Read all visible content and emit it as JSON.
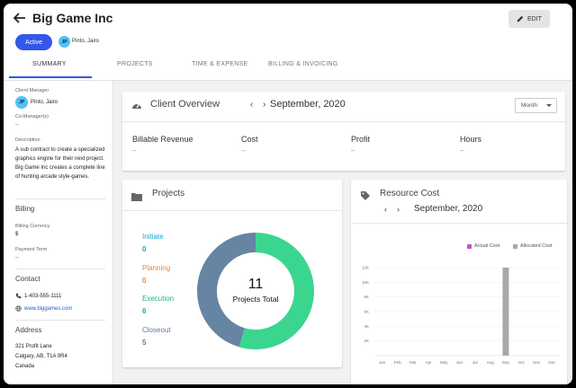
{
  "header": {
    "title": "Big Game Inc",
    "edit_label": "EDIT",
    "status": "Active",
    "owner_initials": "JP",
    "owner_name": "Pinto, Jairo"
  },
  "tabs": [
    "SUMMARY",
    "PROJECTS",
    "TIME & EXPENSE",
    "BILLING & INVOICING"
  ],
  "sidebar": {
    "client_manager_label": "Client Manager",
    "client_manager_initials": "JP",
    "client_manager_name": "Pinto, Jairo",
    "co_managers_label": "Co-Manager(s)",
    "co_managers_value": "--",
    "description_label": "Description",
    "description": "A sub contract to create a specialized graphics engine for their next project. Big Game Inc creates a complete line of hunting arcade style-games.",
    "billing_heading": "Billing",
    "billing_currency_label": "Billing Currency",
    "billing_currency": "$",
    "payment_term_label": "Payment Term",
    "payment_term": "--",
    "contact_heading": "Contact",
    "phone": "1-403-555-1111",
    "website": "www.biggames.com",
    "address_heading": "Address",
    "address_line1": "321 Profit Lane",
    "address_line2": "Calgary, AB, T1A 9R4",
    "address_line3": "Canada"
  },
  "overview": {
    "title": "Client Overview",
    "month": "September, 2020",
    "period_select": "Month",
    "metrics": [
      {
        "label": "Billable Revenue",
        "value": "--"
      },
      {
        "label": "Cost",
        "value": "--"
      },
      {
        "label": "Profit",
        "value": "--"
      },
      {
        "label": "Hours",
        "value": "--"
      }
    ]
  },
  "projects": {
    "title": "Projects",
    "total": "11",
    "total_label": "Projects Total",
    "stages": [
      {
        "label": "Initiate",
        "count": "0",
        "color": "#1aa3c9"
      },
      {
        "label": "Planning",
        "count": "0",
        "color": "#e8873a"
      },
      {
        "label": "Execution",
        "count": "6",
        "color": "#1fb57e"
      },
      {
        "label": "Closeout",
        "count": "5",
        "color": "#5d7e9e"
      }
    ],
    "donut_colors": {
      "execution": "#3ad690",
      "closeout": "#6585a3"
    }
  },
  "resource": {
    "title": "Resource Cost",
    "month": "September, 2020",
    "legend": [
      {
        "label": "Actual Cost",
        "color": "#c955c9"
      },
      {
        "label": "Allocated Cost",
        "color": "#a8a8a8"
      }
    ]
  },
  "chart_data": {
    "type": "bar",
    "categories": [
      "Jan",
      "Feb",
      "Mar",
      "Apr",
      "May",
      "Jun",
      "Jul",
      "Aug",
      "Sep",
      "Oct",
      "Nov",
      "Dec"
    ],
    "yticks": [
      "12K",
      "10K",
      "8K",
      "6K",
      "4K",
      "2K"
    ],
    "ylim": [
      0,
      12000
    ],
    "series": [
      {
        "name": "Actual Cost",
        "values": [
          0,
          0,
          0,
          0,
          0,
          0,
          0,
          0,
          0,
          0,
          0,
          0
        ]
      },
      {
        "name": "Allocated Cost",
        "values": [
          0,
          0,
          0,
          0,
          0,
          0,
          0,
          0,
          12000,
          0,
          0,
          0
        ]
      }
    ],
    "legend": "top-right"
  }
}
